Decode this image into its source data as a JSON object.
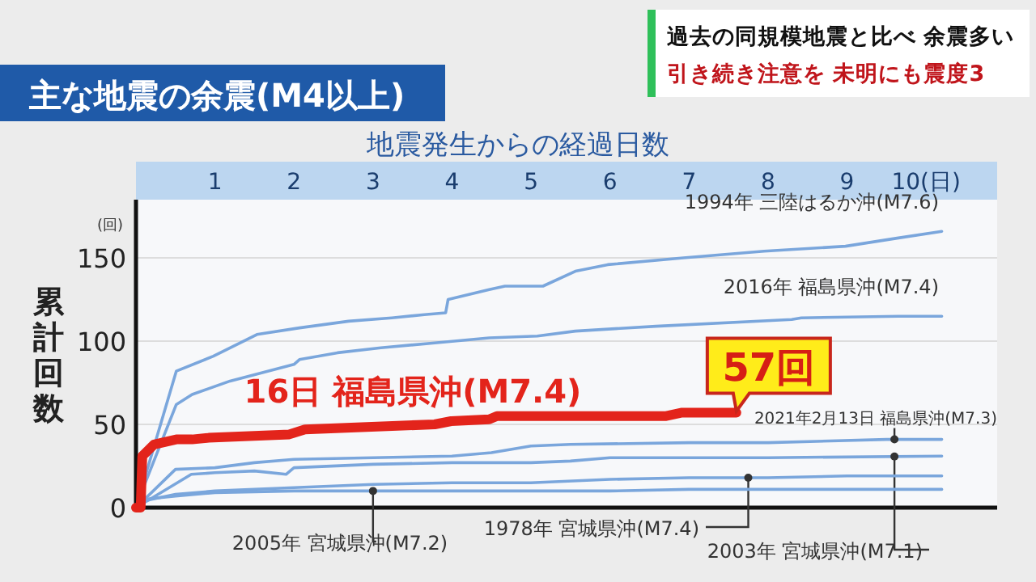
{
  "chart_data": {
    "type": "line",
    "title": "主な地震の余震(M4以上)",
    "xlabel": "地震発生からの経過日数",
    "ylabel": "累計回数",
    "xlim": [
      0,
      10.9
    ],
    "ylim": [
      0,
      185
    ],
    "xticks": [
      1,
      2,
      3,
      4,
      5,
      6,
      7,
      8,
      9,
      {
        "value": 10,
        "label": "10(日)"
      }
    ],
    "yticks": [
      0,
      50,
      100,
      150
    ],
    "grid": "y",
    "legend": false,
    "marker": "none",
    "line_style": "solid",
    "annotations": [
      "(回)",
      "過去の同規模地震と比べ 余震多い",
      "引き続き注意を 未明にも震度3",
      {
        "text": "57回",
        "x": 7.6,
        "y": 57
      }
    ],
    "series": [
      {
        "name": "1994年 三陸はるか沖(M7.6)",
        "color": "#7aa6dc",
        "x": [
          0,
          0.51,
          0.98,
          1.53,
          2.07,
          2.69,
          3.24,
          3.65,
          3.92,
          3.95,
          4.47,
          4.67,
          5.08,
          5.15,
          5.56,
          5.97,
          6.93,
          7.95,
          8.98,
          9.65,
          10.2
        ],
        "values": [
          0,
          82,
          91,
          104,
          108,
          112,
          114,
          116,
          117,
          125,
          131,
          133,
          133,
          133,
          142,
          146,
          150,
          154,
          157,
          162,
          166
        ]
      },
      {
        "name": "2016年 福島県沖(M7.4)",
        "color": "#7aa6dc",
        "x": [
          0,
          0.06,
          0.51,
          0.71,
          1.19,
          2.0,
          2.07,
          2.55,
          3.1,
          3.78,
          4.47,
          5.08,
          5.56,
          6.58,
          8.3,
          8.42,
          9.65,
          10.2
        ],
        "values": [
          0,
          8,
          62,
          68,
          76,
          86,
          89,
          93,
          96,
          99,
          102,
          103,
          106,
          109,
          113,
          114,
          115,
          115
        ]
      },
      {
        "name": "2021年2月13日 福島県沖(M7.3)",
        "color": "#7aa6dc",
        "x": [
          0,
          0.5,
          1.0,
          1.5,
          2.0,
          3.0,
          4.0,
          4.5,
          5.0,
          5.5,
          7,
          8,
          9.5,
          10.2
        ],
        "values": [
          0,
          23,
          24,
          27,
          29,
          30,
          31,
          33,
          37,
          38,
          39,
          39,
          41,
          41
        ]
      },
      {
        "name": "2003年 宮城県沖(M7.1)",
        "color": "#7aa6dc",
        "x": [
          0,
          0.7,
          1.0,
          1.5,
          1.9,
          2.0,
          3,
          4,
          5,
          5.5,
          6,
          8,
          10.2
        ],
        "values": [
          0,
          20,
          21,
          22,
          20,
          24,
          26,
          27,
          27,
          28,
          30,
          30,
          31
        ]
      },
      {
        "name": "1978年 宮城県沖(M7.4)",
        "color": "#7aa6dc",
        "x": [
          0,
          0.1,
          0.5,
          1,
          2,
          3,
          4,
          5,
          6,
          7,
          8,
          9,
          10.2
        ],
        "values": [
          0,
          4,
          8,
          10,
          12,
          14,
          15,
          15,
          17,
          18,
          18,
          19,
          19
        ]
      },
      {
        "name": "2005年 宮城県沖(M7.2)",
        "color": "#7aa6dc",
        "x": [
          0,
          0.1,
          0.5,
          1,
          2,
          4,
          6,
          7,
          10.2
        ],
        "values": [
          0,
          5,
          7,
          9,
          10,
          10,
          10,
          11,
          11
        ]
      },
      {
        "name": "16日 福島県沖(M7.4)",
        "color": "#e3241b",
        "x": [
          0,
          0.06,
          0.08,
          0.23,
          0.51,
          0.71,
          0.92,
          1.94,
          2.14,
          3.78,
          3.99,
          4.47,
          4.57,
          6.7,
          6.9,
          7.6
        ],
        "values": [
          0,
          0,
          31,
          38,
          41,
          41,
          42,
          44,
          47,
          50,
          52,
          53,
          55,
          55,
          57,
          57
        ]
      }
    ]
  }
}
